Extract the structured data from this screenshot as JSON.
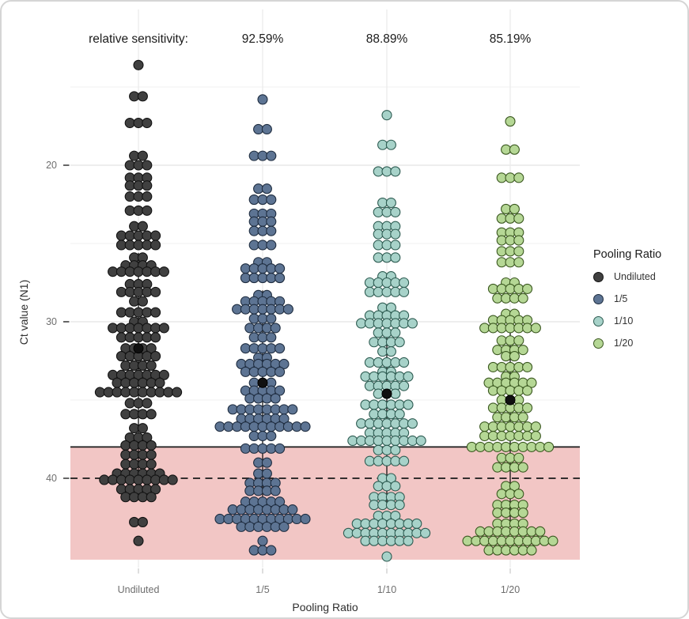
{
  "figure": {
    "annotation_label": "relative sensitivity:",
    "sensitivities": [
      {
        "group": "1/5",
        "value": "92.59%"
      },
      {
        "group": "1/10",
        "value": "88.89%"
      },
      {
        "group": "1/20",
        "value": "85.19%"
      }
    ]
  },
  "chart_data": {
    "type": "scatter",
    "subtype": "stacked-dotplot-beeswarm",
    "title": "",
    "xlabel": "Pooling Ratio",
    "ylabel": "Ct value (N1)",
    "categories": [
      "Undiluted",
      "1/5",
      "1/10",
      "1/20"
    ],
    "y_axis": {
      "ticks": [
        20,
        30,
        40
      ],
      "tick_labels": [
        "20",
        "30",
        "40"
      ],
      "minor_gridlines": [
        15,
        25,
        35,
        45
      ],
      "range": [
        10,
        45.7
      ],
      "reversed": true,
      "grid": true
    },
    "threshold_lines": {
      "solid_ct": 38,
      "dashed_ct": 40,
      "line_color": "#1a1a1a"
    },
    "shaded_region": {
      "from_ct": 38,
      "to_ct": 45.2,
      "color": "#f2c6c5"
    },
    "legend": {
      "title": "Pooling Ratio",
      "position": "right"
    },
    "groups": [
      {
        "name": "Undiluted",
        "fill": "#404040",
        "stroke": "#121212",
        "mean_ct": 31.7,
        "whisker_ct": [
          25.6,
          40.3
        ],
        "rows": [
          [
            13.6,
            1
          ],
          [
            15.6,
            2
          ],
          [
            17.3,
            3
          ],
          [
            19.4,
            2
          ],
          [
            20.0,
            3
          ],
          [
            20.8,
            3
          ],
          [
            21.3,
            3
          ],
          [
            22.0,
            3
          ],
          [
            22.9,
            3
          ],
          [
            23.9,
            2
          ],
          [
            24.5,
            5
          ],
          [
            25.1,
            5
          ],
          [
            25.9,
            2
          ],
          [
            26.4,
            4
          ],
          [
            26.8,
            7
          ],
          [
            27.6,
            3
          ],
          [
            28.1,
            5
          ],
          [
            28.7,
            2
          ],
          [
            29.4,
            5
          ],
          [
            30.0,
            2
          ],
          [
            30.4,
            7
          ],
          [
            31.0,
            5
          ],
          [
            31.7,
            4
          ],
          [
            32.2,
            5
          ],
          [
            32.8,
            4
          ],
          [
            33.4,
            7
          ],
          [
            33.9,
            6
          ],
          [
            34.5,
            10
          ],
          [
            35.2,
            3
          ],
          [
            35.9,
            4
          ],
          [
            36.8,
            2
          ],
          [
            37.4,
            3
          ],
          [
            37.9,
            4
          ],
          [
            38.5,
            4
          ],
          [
            39.1,
            4
          ],
          [
            39.7,
            6
          ],
          [
            40.1,
            9
          ],
          [
            40.7,
            5
          ],
          [
            41.2,
            4
          ],
          [
            42.8,
            2
          ],
          [
            44.0,
            1
          ]
        ]
      },
      {
        "name": "1/5",
        "fill": "#5d7493",
        "stroke": "#1e2c3f",
        "mean_ct": 33.9,
        "whisker_ct": [
          28.0,
          41.7
        ],
        "rows": [
          [
            15.8,
            1
          ],
          [
            17.7,
            2
          ],
          [
            19.4,
            3
          ],
          [
            21.5,
            2
          ],
          [
            22.2,
            3
          ],
          [
            23.1,
            3
          ],
          [
            23.6,
            3
          ],
          [
            24.2,
            3
          ],
          [
            25.1,
            3
          ],
          [
            26.2,
            2
          ],
          [
            26.6,
            5
          ],
          [
            27.2,
            5
          ],
          [
            28.3,
            2
          ],
          [
            28.7,
            5
          ],
          [
            29.2,
            7
          ],
          [
            29.8,
            3
          ],
          [
            30.4,
            4
          ],
          [
            31.0,
            3
          ],
          [
            31.7,
            5
          ],
          [
            32.3,
            2
          ],
          [
            32.7,
            6
          ],
          [
            33.2,
            5
          ],
          [
            33.9,
            3
          ],
          [
            34.4,
            5
          ],
          [
            34.9,
            4
          ],
          [
            35.6,
            8
          ],
          [
            36.2,
            6
          ],
          [
            36.7,
            11
          ],
          [
            37.3,
            3
          ],
          [
            38.1,
            5
          ],
          [
            39.0,
            2
          ],
          [
            39.7,
            2
          ],
          [
            40.3,
            4
          ],
          [
            40.8,
            4
          ],
          [
            41.5,
            5
          ],
          [
            42.0,
            8
          ],
          [
            42.6,
            11
          ],
          [
            43.1,
            6
          ],
          [
            44.0,
            1
          ],
          [
            44.6,
            3
          ]
        ]
      },
      {
        "name": "1/10",
        "fill": "#a7d2c9",
        "stroke": "#2d5b51",
        "mean_ct": 34.6,
        "whisker_ct": [
          29.0,
          41.5
        ],
        "rows": [
          [
            16.8,
            1
          ],
          [
            18.7,
            2
          ],
          [
            20.4,
            3
          ],
          [
            22.4,
            2
          ],
          [
            23.0,
            3
          ],
          [
            23.9,
            3
          ],
          [
            24.4,
            3
          ],
          [
            25.1,
            3
          ],
          [
            25.9,
            3
          ],
          [
            27.1,
            2
          ],
          [
            27.5,
            5
          ],
          [
            28.1,
            5
          ],
          [
            29.1,
            2
          ],
          [
            29.6,
            5
          ],
          [
            30.1,
            7
          ],
          [
            30.7,
            3
          ],
          [
            31.3,
            4
          ],
          [
            31.9,
            2
          ],
          [
            32.6,
            5
          ],
          [
            33.2,
            2
          ],
          [
            33.5,
            6
          ],
          [
            34.1,
            5
          ],
          [
            34.6,
            3
          ],
          [
            35.3,
            6
          ],
          [
            35.9,
            4
          ],
          [
            36.5,
            7
          ],
          [
            37.1,
            5
          ],
          [
            37.6,
            9
          ],
          [
            38.2,
            3
          ],
          [
            38.9,
            5
          ],
          [
            40.0,
            2
          ],
          [
            40.5,
            3
          ],
          [
            41.2,
            4
          ],
          [
            41.7,
            4
          ],
          [
            42.4,
            3
          ],
          [
            42.9,
            8
          ],
          [
            43.5,
            10
          ],
          [
            44.0,
            6
          ],
          [
            45.0,
            1
          ]
        ]
      },
      {
        "name": "1/20",
        "fill": "#b5d795",
        "stroke": "#3a571f",
        "mean_ct": 35.0,
        "whisker_ct": [
          29.4,
          42.7
        ],
        "rows": [
          [
            17.2,
            1
          ],
          [
            19.0,
            2
          ],
          [
            20.8,
            3
          ],
          [
            22.8,
            2
          ],
          [
            23.4,
            3
          ],
          [
            24.3,
            3
          ],
          [
            24.8,
            3
          ],
          [
            25.5,
            3
          ],
          [
            26.2,
            3
          ],
          [
            27.5,
            2
          ],
          [
            27.9,
            5
          ],
          [
            28.5,
            4
          ],
          [
            29.5,
            2
          ],
          [
            29.9,
            5
          ],
          [
            30.4,
            7
          ],
          [
            31.2,
            3
          ],
          [
            31.8,
            4
          ],
          [
            32.2,
            2
          ],
          [
            32.9,
            5
          ],
          [
            33.5,
            2
          ],
          [
            33.9,
            6
          ],
          [
            34.4,
            5
          ],
          [
            35.0,
            3
          ],
          [
            35.5,
            5
          ],
          [
            36.1,
            4
          ],
          [
            36.7,
            7
          ],
          [
            37.3,
            7
          ],
          [
            38.0,
            10
          ],
          [
            38.7,
            3
          ],
          [
            39.3,
            4
          ],
          [
            40.5,
            2
          ],
          [
            41.0,
            3
          ],
          [
            41.7,
            4
          ],
          [
            42.2,
            4
          ],
          [
            42.9,
            4
          ],
          [
            43.4,
            8
          ],
          [
            44.0,
            11
          ],
          [
            44.6,
            6
          ]
        ]
      }
    ],
    "mean_dot_color": "#101010"
  }
}
